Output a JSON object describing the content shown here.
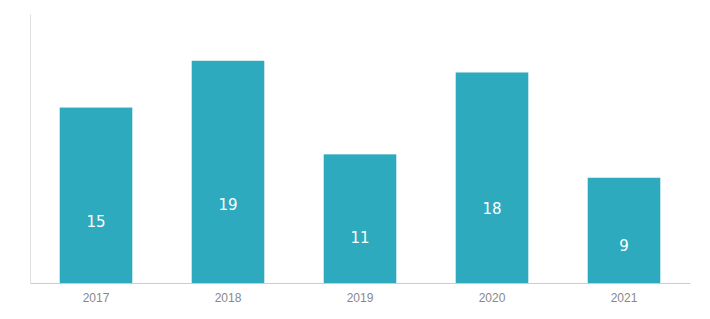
{
  "chart_data": {
    "type": "bar",
    "categories": [
      "2017",
      "2018",
      "2019",
      "2020",
      "2021"
    ],
    "values": [
      15,
      19,
      11,
      18,
      9
    ],
    "color": "#2EAABF",
    "ylim": [
      0,
      23
    ],
    "data_labels": true,
    "tick_labels": "x"
  }
}
